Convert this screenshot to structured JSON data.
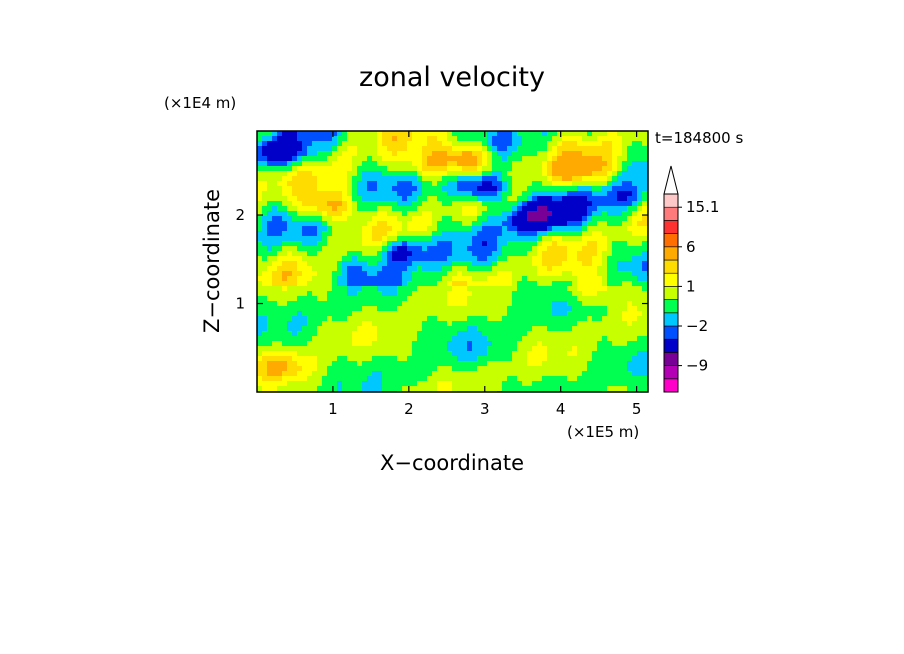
{
  "chart_data": {
    "type": "heatmap",
    "title": "zonal velocity",
    "xlabel": "X−coordinate",
    "ylabel": "Z−coordinate",
    "x_unit": "(×1E5 m)",
    "y_unit": "(×1E4 m)",
    "time_label": "t=184800 s",
    "xlim": [
      0,
      5.15
    ],
    "ylim": [
      0,
      2.95
    ],
    "x_ticks": [
      1,
      2,
      3,
      4,
      5
    ],
    "y_ticks": [
      1,
      2
    ],
    "colorbar": {
      "levels": [
        -15,
        -12,
        -9,
        -6,
        -3,
        -2,
        -1,
        0,
        1,
        2,
        3,
        6,
        9,
        12,
        15.1
      ],
      "colors": [
        "#ff00c8",
        "#b400b4",
        "#780096",
        "#0000c8",
        "#0050ff",
        "#00c8ff",
        "#00ff50",
        "#c8ff00",
        "#ffff00",
        "#ffdc00",
        "#ffaa00",
        "#ff6e00",
        "#ff3232",
        "#ff7a7a",
        "#ffc8c8"
      ],
      "labels": [
        "15.1",
        "6",
        "1",
        "−2",
        "−9"
      ],
      "label_values": [
        15.1,
        6,
        1,
        -2,
        -9
      ],
      "extend": "max"
    },
    "features": [
      {
        "x": 2.95,
        "z": 2.3,
        "value": -6
      },
      {
        "x": 2.75,
        "z": 2.65,
        "value": 5
      },
      {
        "x": 0.35,
        "z": 2.7,
        "value": -5
      },
      {
        "x": 0.9,
        "z": 2.1,
        "value": 4
      },
      {
        "x": 1.95,
        "z": 1.6,
        "value": -4
      },
      {
        "x": 3.6,
        "z": 1.95,
        "value": -4
      },
      {
        "x": 4.2,
        "z": 2.5,
        "value": 3.5
      },
      {
        "x": 3.9,
        "z": 2.05,
        "value": -3
      },
      {
        "x": 4.4,
        "z": 1.2,
        "value": 2
      },
      {
        "x": 2.9,
        "z": 0.5,
        "value": -0.8
      },
      {
        "x": 1.2,
        "z": 1.4,
        "value": -1.2
      },
      {
        "x": 0.3,
        "z": 0.3,
        "value": 2.5
      },
      {
        "x": 4.9,
        "z": 2.2,
        "value": -2.5
      },
      {
        "x": 2.2,
        "z": 2.55,
        "value": 2.5
      }
    ]
  }
}
